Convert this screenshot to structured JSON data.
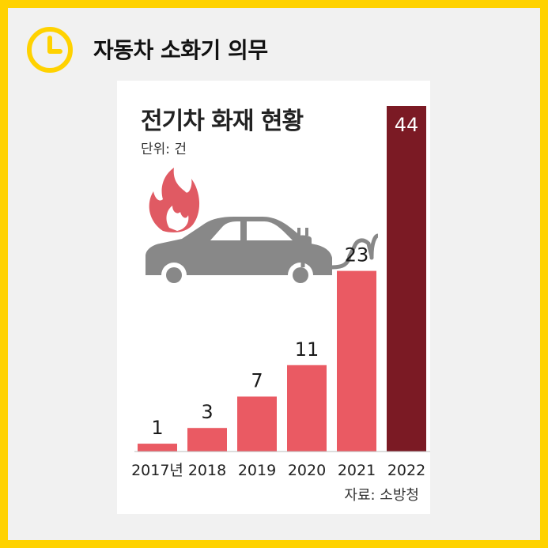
{
  "header": {
    "title": "자동차 소화기 의무",
    "icon": "clock-icon"
  },
  "chart_data": {
    "type": "bar",
    "title": "전기차 화재 현황",
    "unit": "단위: 건",
    "source": "자료: 소방청",
    "categories": [
      "2017년",
      "2018",
      "2019",
      "2020",
      "2021",
      "2022"
    ],
    "values": [
      1,
      3,
      7,
      11,
      23,
      44
    ],
    "ylim": [
      0,
      44
    ],
    "colors": {
      "bar": "#ea5a63",
      "highlight": "#7b1a24",
      "highlight_text": "#ffffff",
      "label": "#1a1a1a"
    },
    "illustration": [
      "flame-icon",
      "electric-car-icon",
      "plug-icon"
    ]
  },
  "colors": {
    "background": "#ffd200",
    "accent": "#ffd200"
  }
}
